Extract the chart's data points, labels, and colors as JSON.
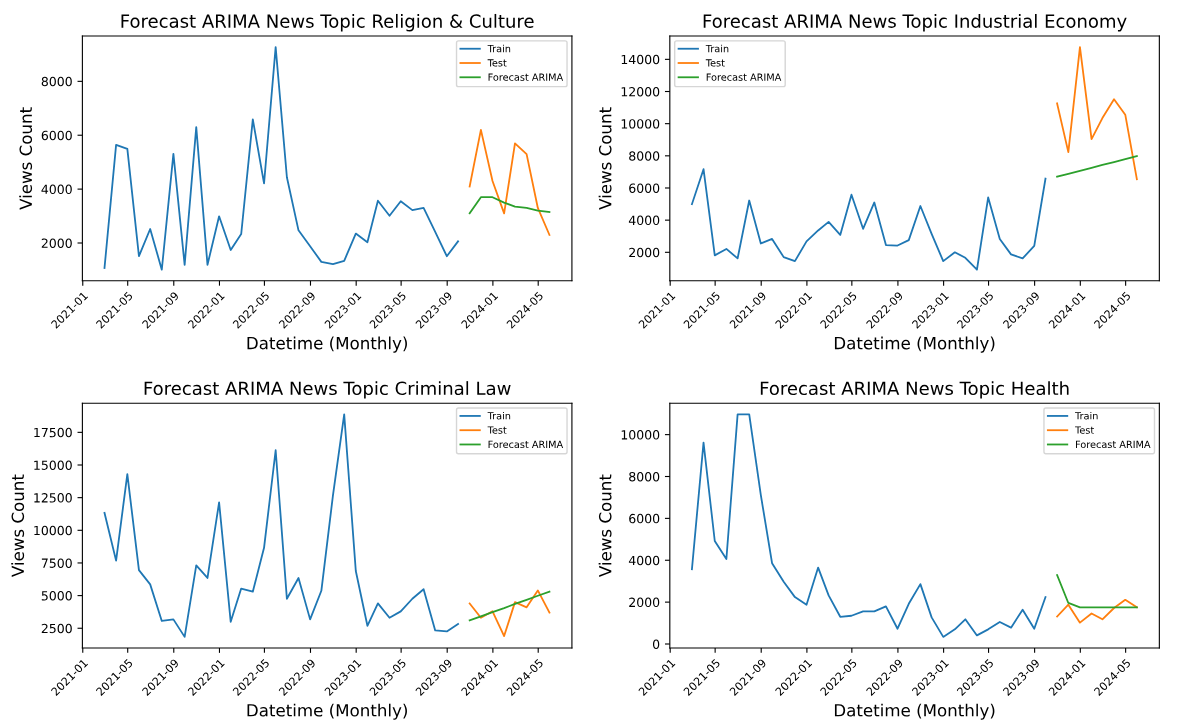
{
  "chart_data": [
    {
      "type": "line",
      "title": "Forecast ARIMA News Topic Religion & Culture",
      "xlabel": "Datetime (Monthly)",
      "ylabel": "Views Count",
      "legend": "top right",
      "x": [
        "2021-02-28",
        "2021-03-31",
        "2021-04-30",
        "2021-05-31",
        "2021-06-30",
        "2021-07-31",
        "2021-08-31",
        "2021-09-30",
        "2021-10-31",
        "2021-11-30",
        "2021-12-31",
        "2022-01-31",
        "2022-02-28",
        "2022-03-31",
        "2022-04-30",
        "2022-05-31",
        "2022-06-30",
        "2022-07-31",
        "2022-08-31",
        "2022-09-30",
        "2022-10-31",
        "2022-11-30",
        "2022-12-31",
        "2023-01-31",
        "2023-02-28",
        "2023-03-31",
        "2023-04-30",
        "2023-05-31",
        "2023-06-30",
        "2023-07-31",
        "2023-08-31",
        "2023-09-30"
      ],
      "series": [
        {
          "name": "Train",
          "color": "#1f77b4",
          "values": [
            1070,
            5640,
            5490,
            1510,
            2520,
            1010,
            5310,
            1190,
            6300,
            1190,
            2990,
            1740,
            2330,
            6590,
            4210,
            9270,
            4440,
            2470,
            1880,
            1300,
            1220,
            1340,
            2350,
            2030,
            3570,
            3010,
            3550,
            3220,
            3300,
            2410,
            1510,
            2060
          ]
        },
        {
          "name": "Test",
          "color": "#ff7f0e",
          "x": [
            "2023-10-31",
            "2023-11-30",
            "2023-12-31",
            "2024-01-31",
            "2024-02-29",
            "2024-03-31",
            "2024-04-30",
            "2024-05-31"
          ],
          "values": [
            4100,
            6200,
            4300,
            3100,
            5700,
            5300,
            3300,
            2300
          ]
        },
        {
          "name": "Forecast ARIMA",
          "color": "#2ca02c",
          "x": [
            "2023-10-31",
            "2023-11-30",
            "2023-12-31",
            "2024-01-31",
            "2024-02-29",
            "2024-03-31",
            "2024-04-30",
            "2024-05-31"
          ],
          "values": [
            3100,
            3700,
            3700,
            3500,
            3350,
            3300,
            3200,
            3150
          ]
        }
      ],
      "xlim": [
        "2020-12-31",
        "2024-07-30"
      ],
      "xticks": [
        "2021-01",
        "2021-05",
        "2021-09",
        "2022-01",
        "2022-05",
        "2022-09",
        "2023-01",
        "2023-05",
        "2023-09",
        "2024-01",
        "2024-05"
      ],
      "ylim": [
        597,
        9683
      ],
      "yticks": [
        2000,
        4000,
        6000,
        8000
      ]
    },
    {
      "type": "line",
      "title": "Forecast ARIMA News Topic Industrial Economy",
      "xlabel": "Datetime (Monthly)",
      "ylabel": "Views Count",
      "legend": "top left",
      "x": [
        "2021-02-28",
        "2021-03-31",
        "2021-04-30",
        "2021-05-31",
        "2021-06-30",
        "2021-07-31",
        "2021-08-31",
        "2021-09-30",
        "2021-10-31",
        "2021-11-30",
        "2021-12-31",
        "2022-01-31",
        "2022-02-28",
        "2022-03-31",
        "2022-04-30",
        "2022-05-31",
        "2022-06-30",
        "2022-07-31",
        "2022-08-31",
        "2022-09-30",
        "2022-10-31",
        "2022-11-30",
        "2022-12-31",
        "2023-01-31",
        "2023-02-28",
        "2023-03-31",
        "2023-04-30",
        "2023-05-31",
        "2023-06-30",
        "2023-07-31",
        "2023-08-31",
        "2023-09-30"
      ],
      "series": [
        {
          "name": "Train",
          "color": "#1f77b4",
          "values": [
            4990,
            7170,
            1810,
            2210,
            1620,
            5220,
            2550,
            2830,
            1700,
            1450,
            2680,
            3360,
            3890,
            3080,
            5580,
            3460,
            5100,
            2450,
            2420,
            2760,
            4880,
            3150,
            1450,
            2000,
            1660,
            920,
            5410,
            2830,
            1870,
            1620,
            2400,
            6580
          ]
        },
        {
          "name": "Test",
          "color": "#ff7f0e",
          "x": [
            "2023-10-31",
            "2023-11-30",
            "2023-12-31",
            "2024-01-31",
            "2024-02-29",
            "2024-03-31",
            "2024-04-30",
            "2024-05-31"
          ],
          "values": [
            11260,
            8230,
            14760,
            9040,
            10350,
            11520,
            10560,
            6540
          ]
        },
        {
          "name": "Forecast ARIMA",
          "color": "#2ca02c",
          "x": [
            "2023-10-31",
            "2023-11-30",
            "2023-12-31",
            "2024-01-31",
            "2024-02-29",
            "2024-03-31",
            "2024-04-30",
            "2024-05-31"
          ],
          "values": [
            6700,
            6880,
            7060,
            7250,
            7430,
            7610,
            7800,
            7980
          ]
        }
      ],
      "xlim": [
        "2020-12-31",
        "2024-07-30"
      ],
      "xticks": [
        "2021-01",
        "2021-05",
        "2021-09",
        "2022-01",
        "2022-05",
        "2022-09",
        "2023-01",
        "2023-05",
        "2023-09",
        "2024-01",
        "2024-05"
      ],
      "ylim": [
        228,
        15452
      ],
      "yticks": [
        2000,
        4000,
        6000,
        8000,
        10000,
        12000,
        14000
      ]
    },
    {
      "type": "line",
      "title": "Forecast ARIMA News Topic Criminal Law",
      "xlabel": "Datetime (Monthly)",
      "ylabel": "Views Count",
      "legend": "top right",
      "x": [
        "2021-02-28",
        "2021-03-31",
        "2021-04-30",
        "2021-05-31",
        "2021-06-30",
        "2021-07-31",
        "2021-08-31",
        "2021-09-30",
        "2021-10-31",
        "2021-11-30",
        "2021-12-31",
        "2022-01-31",
        "2022-02-28",
        "2022-03-31",
        "2022-04-30",
        "2022-05-31",
        "2022-06-30",
        "2022-07-31",
        "2022-08-31",
        "2022-09-30",
        "2022-10-31",
        "2022-11-30",
        "2022-12-31",
        "2023-01-31",
        "2023-02-28",
        "2023-03-31",
        "2023-04-30",
        "2023-05-31",
        "2023-06-30",
        "2023-07-31",
        "2023-08-31",
        "2023-09-30"
      ],
      "series": [
        {
          "name": "Train",
          "color": "#1f77b4",
          "values": [
            11340,
            7680,
            14300,
            6950,
            5860,
            3060,
            3180,
            1840,
            7320,
            6350,
            12140,
            2990,
            5540,
            5300,
            8660,
            16130,
            4760,
            6350,
            3180,
            5370,
            12670,
            18880,
            6880,
            2690,
            4400,
            3300,
            3790,
            4760,
            5490,
            2330,
            2260,
            2820
          ]
        },
        {
          "name": "Test",
          "color": "#ff7f0e",
          "x": [
            "2023-10-31",
            "2023-11-30",
            "2023-12-31",
            "2024-01-31",
            "2024-02-29",
            "2024-03-31",
            "2024-04-30",
            "2024-05-31"
          ],
          "values": [
            4400,
            3300,
            3800,
            1900,
            4500,
            4100,
            5400,
            3700
          ]
        },
        {
          "name": "Forecast ARIMA",
          "color": "#2ca02c",
          "x": [
            "2023-10-31",
            "2023-11-30",
            "2023-12-31",
            "2024-01-31",
            "2024-02-29",
            "2024-03-31",
            "2024-04-30",
            "2024-05-31"
          ],
          "values": [
            3100,
            3410,
            3730,
            4040,
            4360,
            4670,
            4990,
            5300
          ]
        }
      ],
      "xlim": [
        "2020-12-31",
        "2024-07-30"
      ],
      "xticks": [
        "2021-01",
        "2021-05",
        "2021-09",
        "2022-01",
        "2022-05",
        "2022-09",
        "2023-01",
        "2023-05",
        "2023-09",
        "2024-01",
        "2024-05"
      ],
      "ylim": [
        988,
        19732
      ],
      "yticks": [
        2500,
        5000,
        7500,
        10000,
        12500,
        15000,
        17500
      ]
    },
    {
      "type": "line",
      "title": "Forecast ARIMA News Topic Health",
      "xlabel": "Datetime (Monthly)",
      "ylabel": "Views Count",
      "legend": "top right",
      "x": [
        "2021-02-28",
        "2021-03-31",
        "2021-04-30",
        "2021-05-31",
        "2021-06-30",
        "2021-07-31",
        "2021-08-31",
        "2021-09-30",
        "2021-10-31",
        "2021-11-30",
        "2021-12-31",
        "2022-01-31",
        "2022-02-28",
        "2022-03-31",
        "2022-04-30",
        "2022-05-31",
        "2022-06-30",
        "2022-07-31",
        "2022-08-31",
        "2022-09-30",
        "2022-10-31",
        "2022-11-30",
        "2022-12-31",
        "2023-01-31",
        "2023-02-28",
        "2023-03-31",
        "2023-04-30",
        "2023-05-31",
        "2023-06-30",
        "2023-07-31",
        "2023-08-31",
        "2023-09-30"
      ],
      "series": [
        {
          "name": "Train",
          "color": "#1f77b4",
          "values": [
            3570,
            9620,
            4920,
            4060,
            10970,
            10970,
            7110,
            3860,
            2970,
            2240,
            1870,
            3650,
            2320,
            1300,
            1350,
            1560,
            1560,
            1800,
            730,
            1920,
            2860,
            1270,
            340,
            700,
            1180,
            410,
            700,
            1050,
            780,
            1640,
            730,
            2240
          ]
        },
        {
          "name": "Test",
          "color": "#ff7f0e",
          "x": [
            "2023-10-31",
            "2023-11-30",
            "2023-12-31",
            "2024-01-31",
            "2024-02-29",
            "2024-03-31",
            "2024-04-30",
            "2024-05-31"
          ],
          "values": [
            1310,
            1880,
            1020,
            1460,
            1180,
            1720,
            2110,
            1750
          ]
        },
        {
          "name": "Forecast ARIMA",
          "color": "#2ca02c",
          "x": [
            "2023-10-31",
            "2023-11-30",
            "2023-12-31",
            "2024-01-31",
            "2024-02-29",
            "2024-03-31",
            "2024-04-30",
            "2024-05-31"
          ],
          "values": [
            3290,
            1960,
            1750,
            1750,
            1750,
            1750,
            1750,
            1750
          ]
        }
      ],
      "xlim": [
        "2020-12-31",
        "2024-07-30"
      ],
      "xticks": [
        "2021-01",
        "2021-05",
        "2021-09",
        "2022-01",
        "2022-05",
        "2022-09",
        "2023-01",
        "2023-05",
        "2023-09",
        "2024-01",
        "2024-05"
      ],
      "ylim": [
        -191,
        11501
      ],
      "yticks": [
        0,
        2000,
        4000,
        6000,
        8000,
        10000
      ]
    }
  ]
}
